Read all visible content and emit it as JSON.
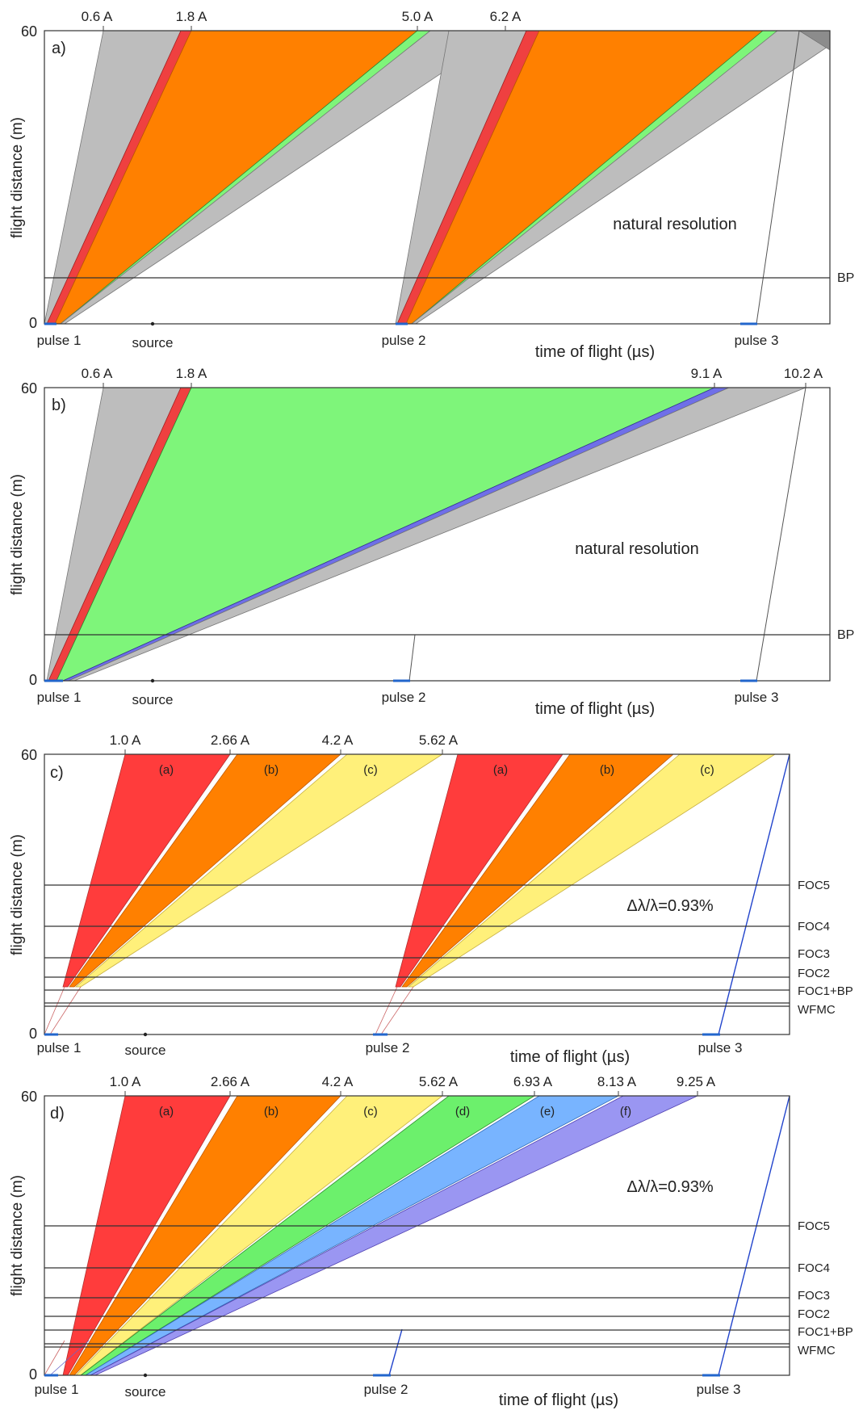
{
  "chart_data": [
    {
      "type": "area",
      "panel_label": "a)",
      "ylabel": "flight distance (m)",
      "xlabel": "time of flight (µs)",
      "y_ticks": [
        "0",
        "60"
      ],
      "ylim": [
        0,
        60
      ],
      "annotation": "natural resolution",
      "wavelength_labels": [
        "0.6 A",
        "1.8 A",
        "5.0 A",
        "6.2 A"
      ],
      "pulse_labels": [
        "pulse 1",
        "pulse 2",
        "pulse 3"
      ],
      "source_label": "source",
      "components": [
        {
          "name": "BP",
          "distance_m": 9.5
        }
      ],
      "band_colors": [
        "#bdbdbd",
        "#ef4040",
        "#ff8000",
        "#7ef57a"
      ],
      "frame_overlap_color": "#8c8c8c"
    },
    {
      "type": "area",
      "panel_label": "b)",
      "ylabel": "flight distance (m)",
      "xlabel": "time of flight (µs)",
      "y_ticks": [
        "0",
        "60"
      ],
      "ylim": [
        0,
        60
      ],
      "annotation": "natural resolution",
      "wavelength_labels": [
        "0.6 A",
        "1.8 A",
        "9.1 A",
        "10.2 A"
      ],
      "pulse_labels": [
        "pulse 1",
        "pulse 2",
        "pulse 3"
      ],
      "source_label": "source",
      "components": [
        {
          "name": "BP",
          "distance_m": 9.5
        }
      ],
      "band_colors": [
        "#bdbdbd",
        "#ef4040",
        "#7ef57a",
        "#6f6fe8"
      ]
    },
    {
      "type": "area",
      "panel_label": "c)",
      "ylabel": "flight distance (m)",
      "xlabel": "time of flight (µs)",
      "y_ticks": [
        "0",
        "60"
      ],
      "ylim": [
        0,
        60
      ],
      "annotation": "Δλ/λ=0.93%",
      "wavelength_labels": [
        "1.0 A",
        "2.66 A",
        "4.2 A",
        "5.62 A"
      ],
      "subframe_labels": [
        "(a)",
        "(b)",
        "(c)",
        "(a)",
        "(b)",
        "(c)"
      ],
      "pulse_labels": [
        "pulse 1",
        "pulse 2",
        "pulse 3"
      ],
      "source_label": "source",
      "components": [
        {
          "name": "FOC5",
          "distance_m": 31
        },
        {
          "name": "FOC4",
          "distance_m": 22.5
        },
        {
          "name": "FOC3",
          "distance_m": 16
        },
        {
          "name": "FOC2",
          "distance_m": 11.8
        },
        {
          "name": "FOC1+BP",
          "distance_m": 9
        },
        {
          "name": "WFMC",
          "distance_m": 6.4
        }
      ],
      "band_colors": [
        "#ff3c3c",
        "#ff8000",
        "#fff07a"
      ]
    },
    {
      "type": "area",
      "panel_label": "d)",
      "ylabel": "flight distance (m)",
      "xlabel": "time of flight (µs)",
      "y_ticks": [
        "0",
        "60"
      ],
      "ylim": [
        0,
        60
      ],
      "annotation": "Δλ/λ=0.93%",
      "wavelength_labels": [
        "1.0 A",
        "2.66 A",
        "4.2 A",
        "5.62 A",
        "6.93 A",
        "8.13 A",
        "9.25 A"
      ],
      "subframe_labels": [
        "(a)",
        "(b)",
        "(c)",
        "(d)",
        "(e)",
        "(f)"
      ],
      "pulse_labels": [
        "pulse 1",
        "pulse 2",
        "pulse 3"
      ],
      "source_label": "source",
      "components": [
        {
          "name": "FOC5",
          "distance_m": 31
        },
        {
          "name": "FOC4",
          "distance_m": 22.5
        },
        {
          "name": "FOC3",
          "distance_m": 16
        },
        {
          "name": "FOC2",
          "distance_m": 11.8
        },
        {
          "name": "FOC1+BP",
          "distance_m": 9
        },
        {
          "name": "WFMC",
          "distance_m": 6.4
        }
      ],
      "band_colors": [
        "#ff3c3c",
        "#ff8000",
        "#fff07a",
        "#6cf06c",
        "#78b4ff",
        "#9a96f2"
      ]
    }
  ]
}
